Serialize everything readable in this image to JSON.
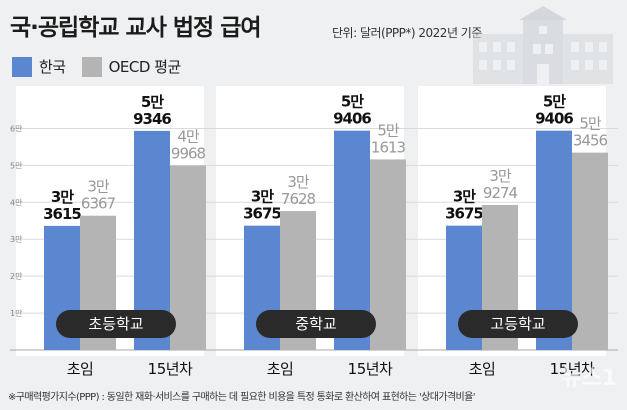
{
  "title": "국·공립학교 교사 법정 급여",
  "unit": "단위: 달러(PPP*) 2022년 기준",
  "legend": [
    {
      "name": "한국",
      "color": "#5b87d0"
    },
    {
      "name": "OECD 평균",
      "color": "#b4b4b4"
    }
  ],
  "chart_data": {
    "type": "bar",
    "ylim": [
      0,
      65000
    ],
    "yticks": [
      {
        "value": 10000,
        "label": "1만"
      },
      {
        "value": 20000,
        "label": "2만"
      },
      {
        "value": 30000,
        "label": "3만"
      },
      {
        "value": 40000,
        "label": "4만"
      },
      {
        "value": 50000,
        "label": "5만"
      },
      {
        "value": 60000,
        "label": "6만"
      }
    ],
    "groups": [
      "초등학교",
      "중학교",
      "고등학교"
    ],
    "categories": [
      "초임",
      "15년차"
    ],
    "series": [
      {
        "name": "한국",
        "color": "#5b87d0",
        "values": [
          [
            33615,
            59346
          ],
          [
            33675,
            59406
          ],
          [
            33675,
            59406
          ]
        ],
        "labels": [
          [
            "3만",
            "3615"
          ],
          [
            "5만",
            "9346"
          ],
          [
            "3만",
            "3675"
          ],
          [
            "5만",
            "9406"
          ],
          [
            "3만",
            "3675"
          ],
          [
            "5만",
            "9406"
          ]
        ]
      },
      {
        "name": "OECD 평균",
        "color": "#b4b4b4",
        "values": [
          [
            36367,
            49968
          ],
          [
            37628,
            51613
          ],
          [
            39274,
            53456
          ]
        ],
        "labels": [
          [
            "3만",
            "6367"
          ],
          [
            "4만",
            "9968"
          ],
          [
            "3만",
            "7628"
          ],
          [
            "5만",
            "1613"
          ],
          [
            "3만",
            "9274"
          ],
          [
            "5만",
            "3456"
          ]
        ]
      }
    ]
  },
  "footnote": "※구매력평가지수(PPP) : 동일한 재화·서비스를 구매하는 데 필요한 비용을 특정 통화로 환산하여 표현하는 '상대가격비율'",
  "watermark": "뉴스1"
}
